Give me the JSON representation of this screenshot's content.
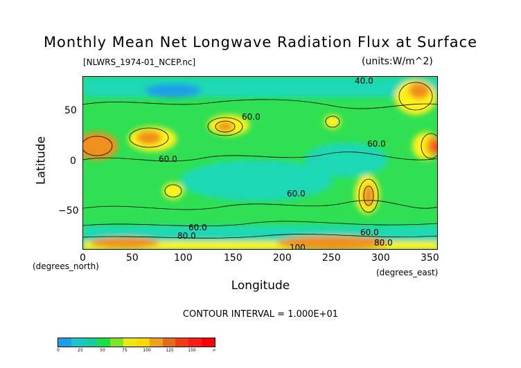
{
  "title": "Monthly Mean Net Longwave Radiation Flux at Surface",
  "file_label": "[NLWRS_1974-01_NCEP.nc]",
  "units_label": "(units:W/m^2)",
  "x_axis": {
    "label": "Longitude",
    "unit_label": "(degrees_east)",
    "ticks": [
      "0",
      "50",
      "100",
      "150",
      "200",
      "250",
      "300",
      "350"
    ],
    "range": [
      0,
      360
    ]
  },
  "y_axis": {
    "label": "Latitude",
    "unit_label": "(degrees_north)",
    "ticks": [
      "50",
      "0",
      "−50"
    ],
    "range": [
      -90,
      90
    ]
  },
  "contour_interval": "CONTOUR INTERVAL = 1.000E+01",
  "contour_labels": [
    "40.0",
    "60.0",
    "60.0",
    "60.0",
    "60.0",
    "60.0",
    "80.0",
    "60.0",
    "80.0",
    "100."
  ],
  "colorbar": {
    "labels": [
      "0",
      "25",
      "50",
      "75",
      "100",
      "125",
      "150",
      "∞"
    ],
    "colors": [
      "#1a9fe8",
      "#19c9c9",
      "#12cfa0",
      "#18df45",
      "#7fe520",
      "#e8ea12",
      "#ffd800",
      "#f0a21c",
      "#e66c19",
      "#f23d12",
      "#ff1a1a",
      "#ff0000"
    ]
  },
  "palette": {
    "low": "#1a9fe8",
    "mid_low": "#1ad8b4",
    "mid": "#2fe052",
    "mid_high": "#fff21a",
    "high": "#f0901c",
    "max": "#ff1e1e"
  }
}
